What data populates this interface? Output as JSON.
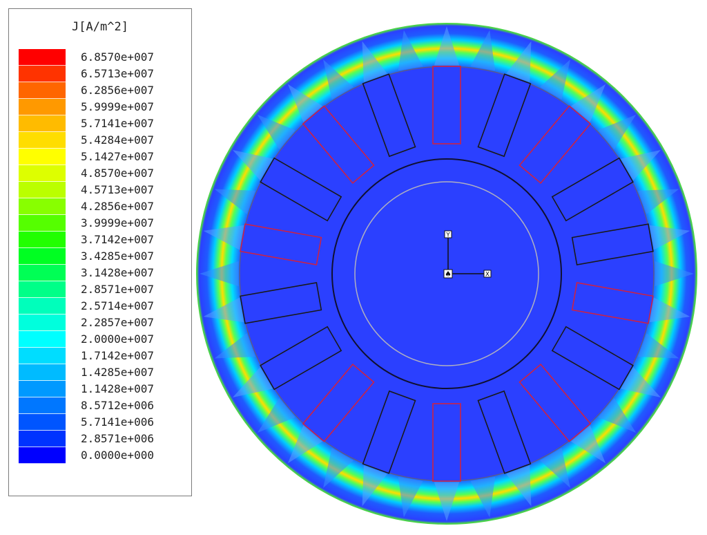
{
  "legend": {
    "title": "J[A/m^2]",
    "levels": [
      {
        "label": "6.8570e+007",
        "color": "#ff0000"
      },
      {
        "label": "6.5713e+007",
        "color": "#ff3300"
      },
      {
        "label": "6.2856e+007",
        "color": "#ff6600"
      },
      {
        "label": "5.9999e+007",
        "color": "#ff9900"
      },
      {
        "label": "5.7141e+007",
        "color": "#ffbb00"
      },
      {
        "label": "5.4284e+007",
        "color": "#ffdd00"
      },
      {
        "label": "5.1427e+007",
        "color": "#ffff00"
      },
      {
        "label": "4.8570e+007",
        "color": "#ddff00"
      },
      {
        "label": "4.5713e+007",
        "color": "#bbff00"
      },
      {
        "label": "4.2856e+007",
        "color": "#88ff00"
      },
      {
        "label": "3.9999e+007",
        "color": "#55ff00"
      },
      {
        "label": "3.7142e+007",
        "color": "#22ff00"
      },
      {
        "label": "3.4285e+007",
        "color": "#00ff22"
      },
      {
        "label": "3.1428e+007",
        "color": "#00ff55"
      },
      {
        "label": "2.8571e+007",
        "color": "#00ff88"
      },
      {
        "label": "2.5714e+007",
        "color": "#00ffbb"
      },
      {
        "label": "2.2857e+007",
        "color": "#00ffdd"
      },
      {
        "label": "2.0000e+007",
        "color": "#00ffff"
      },
      {
        "label": "1.7142e+007",
        "color": "#00ddff"
      },
      {
        "label": "1.4285e+007",
        "color": "#00bbff"
      },
      {
        "label": "1.1428e+007",
        "color": "#0099ff"
      },
      {
        "label": "8.5712e+006",
        "color": "#0077ff"
      },
      {
        "label": "5.7141e+006",
        "color": "#0055ff"
      },
      {
        "label": "2.8571e+006",
        "color": "#0033ff"
      },
      {
        "label": "0.0000e+000",
        "color": "#0000ff"
      }
    ]
  },
  "plot": {
    "slot_count": 18,
    "hot_slots": [
      0,
      2,
      5,
      7,
      9,
      11,
      14,
      16
    ],
    "axis": {
      "origin_marker": "♠",
      "x_label": "X",
      "y_label": "Y"
    },
    "colors": {
      "field_blue": "#2b40ff",
      "slot_outline_black": "#1a1a1a",
      "slot_outline_red": "#cc2244",
      "hot_band": "#ffcc00"
    }
  }
}
